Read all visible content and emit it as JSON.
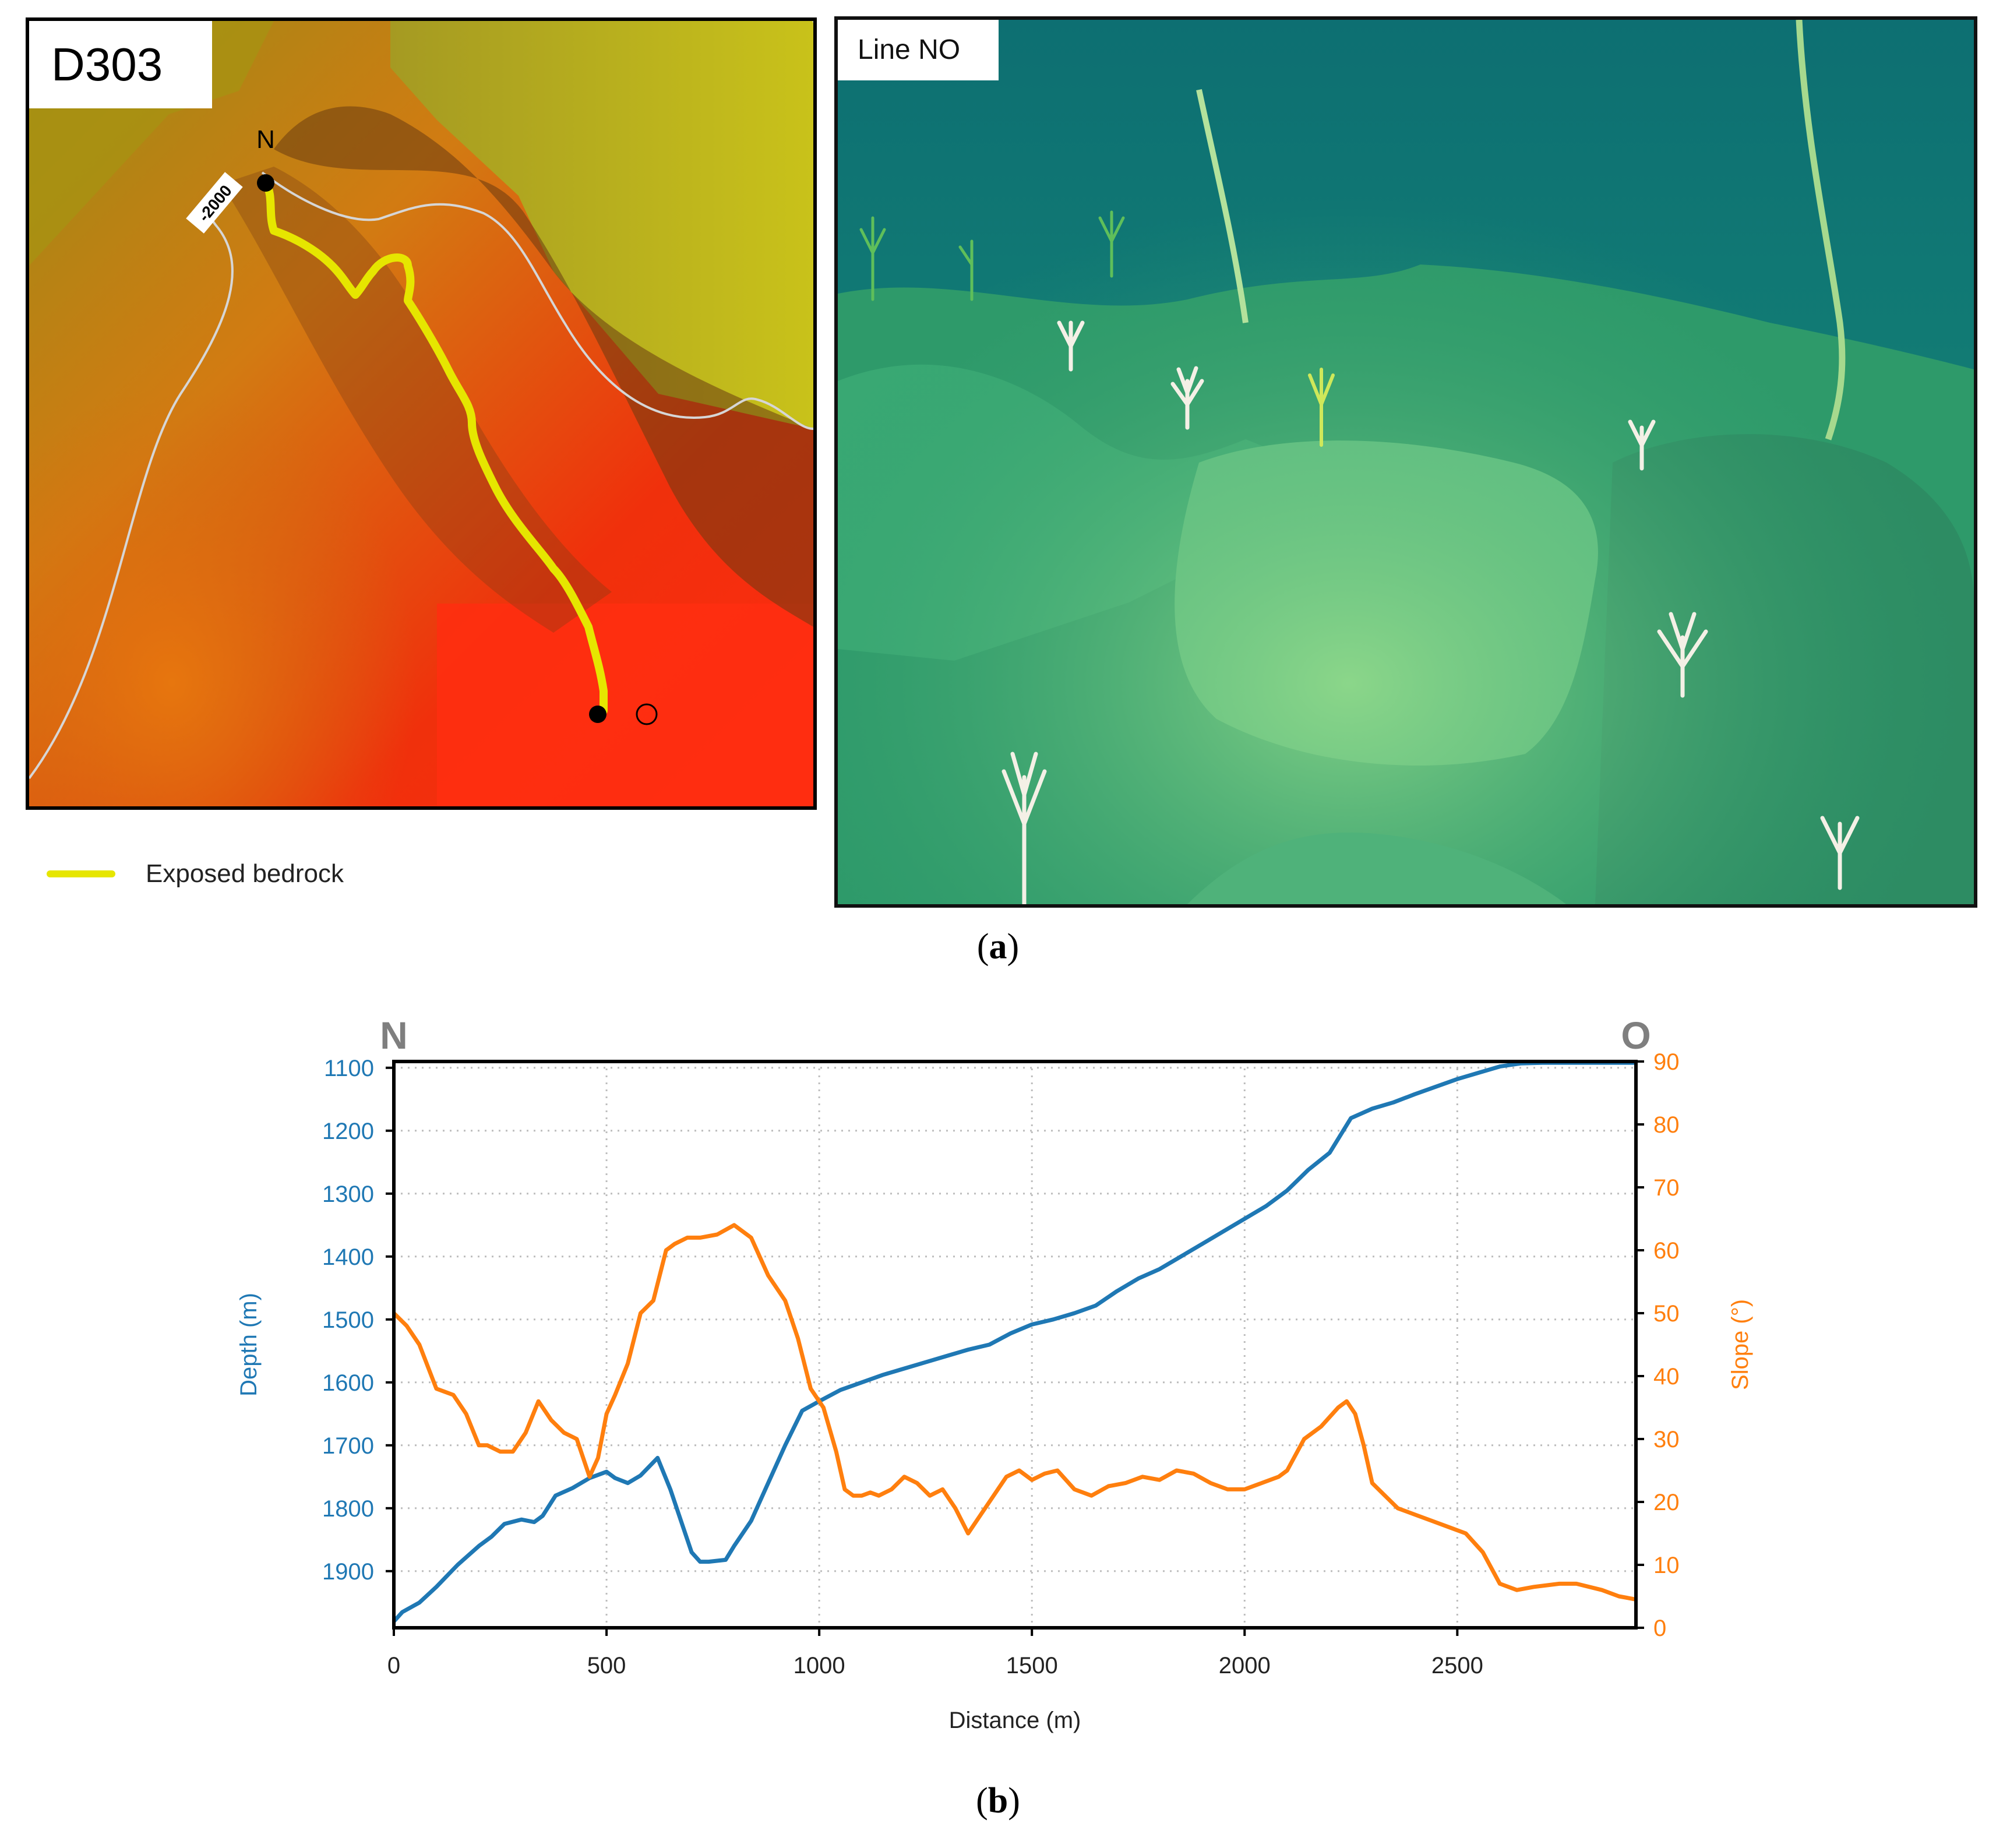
{
  "panel_a": {
    "map": {
      "title": "D303",
      "start_label": "N",
      "contour_label": "-2000",
      "legend_label": "Exposed bedrock",
      "legend_color": "#e6e600"
    },
    "photo": {
      "title": "Line NO"
    },
    "caption_open": "(",
    "caption_letter": "a",
    "caption_close": ")"
  },
  "panel_b": {
    "caption_open": "(",
    "caption_letter": "b",
    "caption_close": ")"
  },
  "chart_data": {
    "type": "line",
    "corner_left": "N",
    "corner_right": "O",
    "xlabel": "Distance (m)",
    "ylabel_left": "Depth (m)",
    "ylabel_right": "Slope (°)",
    "xlim": [
      0,
      2920
    ],
    "ylim_left": [
      1990,
      1090
    ],
    "ylim_right": [
      0,
      90
    ],
    "xticks": [
      0,
      500,
      1000,
      1500,
      2000,
      2500
    ],
    "yticks_left": [
      1100,
      1200,
      1300,
      1400,
      1500,
      1600,
      1700,
      1800,
      1900
    ],
    "yticks_right": [
      0,
      10,
      20,
      30,
      40,
      50,
      60,
      70,
      80,
      90
    ],
    "grid": true,
    "series": [
      {
        "name": "Depth (m)",
        "axis": "left",
        "color": "#1f78b4",
        "x": [
          0,
          20,
          60,
          100,
          150,
          200,
          230,
          260,
          300,
          330,
          350,
          380,
          420,
          460,
          500,
          520,
          550,
          580,
          620,
          650,
          680,
          700,
          720,
          740,
          780,
          800,
          840,
          880,
          920,
          960,
          1000,
          1050,
          1100,
          1150,
          1200,
          1250,
          1300,
          1350,
          1400,
          1450,
          1500,
          1550,
          1600,
          1650,
          1700,
          1750,
          1800,
          1850,
          1900,
          1950,
          2000,
          2050,
          2100,
          2150,
          2200,
          2250,
          2300,
          2350,
          2400,
          2450,
          2500,
          2550,
          2600,
          2650,
          2700,
          2800,
          2920
        ],
        "values": [
          1980,
          1965,
          1950,
          1925,
          1890,
          1860,
          1845,
          1825,
          1818,
          1822,
          1812,
          1780,
          1768,
          1752,
          1742,
          1752,
          1760,
          1748,
          1720,
          1770,
          1830,
          1870,
          1885,
          1885,
          1882,
          1860,
          1820,
          1760,
          1700,
          1645,
          1630,
          1612,
          1600,
          1588,
          1578,
          1568,
          1558,
          1548,
          1540,
          1522,
          1508,
          1500,
          1490,
          1478,
          1455,
          1435,
          1420,
          1400,
          1380,
          1360,
          1340,
          1320,
          1295,
          1262,
          1235,
          1180,
          1165,
          1155,
          1142,
          1130,
          1118,
          1108,
          1098,
          1093,
          1092,
          1092,
          1092
        ]
      },
      {
        "name": "Slope (°)",
        "axis": "right",
        "color": "#ff7f0e",
        "x": [
          0,
          30,
          60,
          100,
          140,
          170,
          200,
          220,
          250,
          280,
          310,
          340,
          370,
          400,
          430,
          460,
          480,
          500,
          520,
          550,
          580,
          610,
          640,
          660,
          690,
          720,
          760,
          800,
          840,
          880,
          920,
          950,
          980,
          1010,
          1040,
          1060,
          1080,
          1100,
          1120,
          1140,
          1170,
          1200,
          1230,
          1260,
          1290,
          1320,
          1350,
          1380,
          1410,
          1440,
          1470,
          1500,
          1530,
          1560,
          1600,
          1640,
          1680,
          1720,
          1760,
          1800,
          1840,
          1880,
          1920,
          1960,
          2000,
          2040,
          2080,
          2100,
          2140,
          2180,
          2220,
          2240,
          2260,
          2280,
          2300,
          2330,
          2360,
          2400,
          2440,
          2480,
          2520,
          2560,
          2600,
          2640,
          2680,
          2740,
          2780,
          2840,
          2880,
          2920
        ],
        "values": [
          50,
          48,
          45,
          38,
          37,
          34,
          29,
          29,
          28,
          28,
          31,
          36,
          33,
          31,
          30,
          24,
          27,
          34,
          37,
          42,
          50,
          52,
          60,
          61,
          62,
          62,
          62.5,
          64,
          62,
          56,
          52,
          46,
          38,
          35,
          28,
          22,
          21,
          21,
          21.5,
          21,
          22,
          24,
          23,
          21,
          22,
          19,
          15,
          18,
          21,
          24,
          25,
          23.5,
          24.5,
          25,
          22,
          21,
          22.5,
          23,
          24,
          23.5,
          25,
          24.5,
          23,
          22,
          22,
          23,
          24,
          25,
          30,
          32,
          35,
          36,
          34,
          29,
          23,
          21,
          19,
          18,
          17,
          16,
          15,
          12,
          7,
          6,
          6.5,
          7,
          7,
          6,
          5,
          4.5
        ]
      }
    ]
  }
}
